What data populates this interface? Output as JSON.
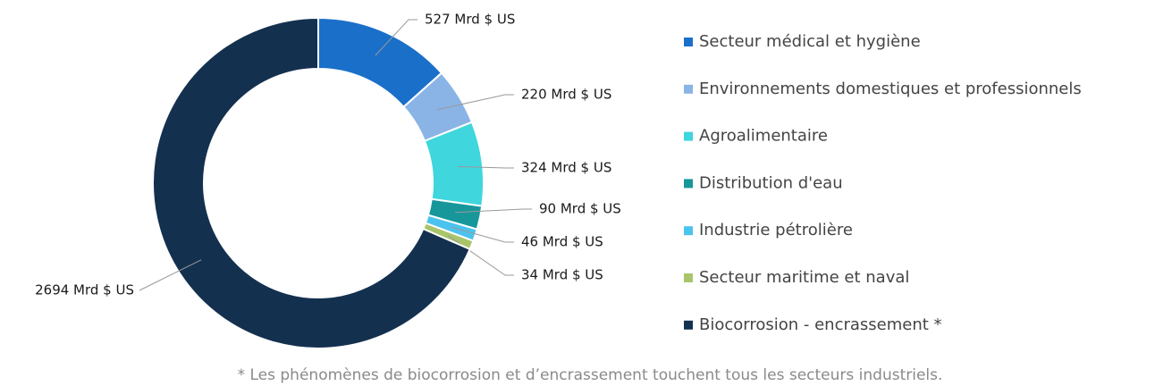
{
  "chart_data": {
    "type": "donut",
    "categories": [
      "Secteur médical et hygiène",
      "Environnements domestiques et professionnels",
      "Agroalimentaire",
      "Distribution d'eau",
      "Industrie pétrolière",
      "Secteur maritime et naval",
      "Biocorrosion - encrassement *"
    ],
    "values": [
      527,
      220,
      324,
      90,
      46,
      34,
      2694
    ],
    "value_labels": [
      "527 Mrd $ US",
      "220 Mrd $ US",
      "324 Mrd $ US",
      "90 Mrd $ US",
      "46 Mrd $ US",
      "34 Mrd $ US",
      "2694 Mrd $ US"
    ],
    "colors": [
      "#1a6fc9",
      "#8ab4e6",
      "#3fd6de",
      "#17979a",
      "#4cc3ee",
      "#a9c56a",
      "#14304f"
    ],
    "legend": "right",
    "footnote": "* Les phénomènes de biocorrosion et d’encrassement touchent tous les secteurs industriels."
  }
}
